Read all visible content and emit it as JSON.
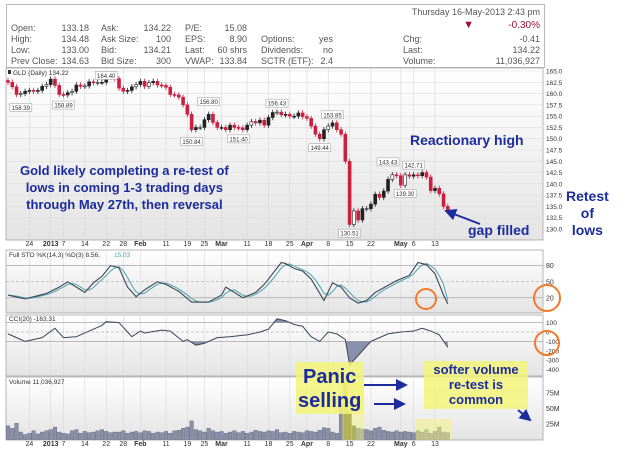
{
  "header": {
    "datetime": "Thursday 16-May-2013 2:43 pm",
    "change_pct": "-0.30%",
    "down_color": "#9b1030",
    "fields": [
      {
        "label": "Open:",
        "value": "133.18"
      },
      {
        "label": "High:",
        "value": "134.48"
      },
      {
        "label": "Low:",
        "value": "133.00"
      },
      {
        "label": "Prev Close:",
        "value": "134.63"
      },
      {
        "label": "Ask:",
        "value": "134.22"
      },
      {
        "label": "Ask Size:",
        "value": "100"
      },
      {
        "label": "Bid:",
        "value": "134.21"
      },
      {
        "label": "Bid Size:",
        "value": "300"
      },
      {
        "label": "P/E:",
        "value": "15.08"
      },
      {
        "label": "EPS:",
        "value": "8.90"
      },
      {
        "label": "Last:",
        "value": "60 shrs"
      },
      {
        "label": "VWAP:",
        "value": "133.84"
      },
      {
        "label": "Options:",
        "value": "yes"
      },
      {
        "label": "Dividends:",
        "value": "no"
      },
      {
        "label": "SCTR (ETF):",
        "value": "2.4"
      },
      {
        "label": "Chg:",
        "value": "-0.41"
      },
      {
        "label": "Last:",
        "value": "134.22"
      },
      {
        "label": "Volume:",
        "value": "11,036,927"
      }
    ]
  },
  "chart_data": {
    "type": "candlestick",
    "price_title": "GLD (Daily) 134.22",
    "first_date": "2012-12-17",
    "last_date": "2013-05-16",
    "closes": [
      162.5,
      161.5,
      159.8,
      160.0,
      160.5,
      160.7,
      160.5,
      160.7,
      161.6,
      162.0,
      163.2,
      161.8,
      159.8,
      159.7,
      160.2,
      160.5,
      161.9,
      161.6,
      161.7,
      162.6,
      162.4,
      162.5,
      162.5,
      163.7,
      163.8,
      163.3,
      161.2,
      160.5,
      160.7,
      161.5,
      162.0,
      162.7,
      161.6,
      162.4,
      162.7,
      161.9,
      161.8,
      161.4,
      159.8,
      159.7,
      159.2,
      157.5,
      155.4,
      152.0,
      152.5,
      152.5,
      154.2,
      155.4,
      153.6,
      152.5,
      152.5,
      152.0,
      153.0,
      152.5,
      152.4,
      152.0,
      153.0,
      153.8,
      153.5,
      154.1,
      153.0,
      154.7,
      155.8,
      155.9,
      155.3,
      155.4,
      155.0,
      155.0,
      155.7,
      154.9,
      154.5,
      152.8,
      151.0,
      150.0,
      152.0,
      152.8,
      153.5,
      152.0,
      151.0,
      145.0,
      131.0,
      134.0,
      132.0,
      134.5,
      134.5,
      135.5,
      137.7,
      137.0,
      138.4,
      141.0,
      142.0,
      141.8,
      139.7,
      142.0,
      141.7,
      142.0,
      141.8,
      142.5,
      141.5,
      138.5,
      139.0,
      137.8,
      135.0,
      134.2
    ],
    "price_labels": [
      {
        "date": "2012-12-20",
        "value": "158.39"
      },
      {
        "date": "2013-01-07",
        "value": "158.89"
      },
      {
        "date": "2013-01-22",
        "value": "164.40"
      },
      {
        "date": "2013-02-20",
        "value": "150.84"
      },
      {
        "date": "2013-02-26",
        "value": "156.80"
      },
      {
        "date": "2013-03-07",
        "value": "151.40"
      },
      {
        "date": "2013-03-20",
        "value": "156.43"
      },
      {
        "date": "2013-04-04",
        "value": "149.44"
      },
      {
        "date": "2013-04-09",
        "value": "153.85"
      },
      {
        "date": "2013-04-15",
        "value": "130.51"
      },
      {
        "date": "2013-04-26",
        "value": "143.43"
      },
      {
        "date": "2013-05-02",
        "value": "139.30"
      },
      {
        "date": "2013-05-06",
        "value": "142.71"
      }
    ],
    "price_ylim": [
      130,
      165
    ],
    "price_yticks": [
      "165.0",
      "162.5",
      "160.0",
      "157.5",
      "155.0",
      "152.5",
      "150.0",
      "147.5",
      "145.0",
      "142.5",
      "140.0",
      "137.5",
      "135.0",
      "132.5",
      "130.0"
    ],
    "xticks": [
      {
        "label": "24",
        "date": "2012-12-24"
      },
      {
        "label": "2013",
        "date": "2013-01-02"
      },
      {
        "label": "7",
        "date": "2013-01-07"
      },
      {
        "label": "14",
        "date": "2013-01-14"
      },
      {
        "label": "22",
        "date": "2013-01-22"
      },
      {
        "label": "28",
        "date": "2013-01-28"
      },
      {
        "label": "Feb",
        "date": "2013-02-01"
      },
      {
        "label": "11",
        "date": "2013-02-11"
      },
      {
        "label": "19",
        "date": "2013-02-19"
      },
      {
        "label": "25",
        "date": "2013-02-25"
      },
      {
        "label": "Mar",
        "date": "2013-03-01"
      },
      {
        "label": "11",
        "date": "2013-03-11"
      },
      {
        "label": "18",
        "date": "2013-03-18"
      },
      {
        "label": "25",
        "date": "2013-03-25"
      },
      {
        "label": "Apr",
        "date": "2013-04-01"
      },
      {
        "label": "8",
        "date": "2013-04-08"
      },
      {
        "label": "15",
        "date": "2013-04-15"
      },
      {
        "label": "22",
        "date": "2013-04-22"
      },
      {
        "label": "May",
        "date": "2013-05-01"
      },
      {
        "label": "6",
        "date": "2013-05-06"
      },
      {
        "label": "13",
        "date": "2013-05-13"
      }
    ],
    "sto_title": "Full STO %K(14,3) %D(3) 8.56,",
    "sto_d_value": "15.03",
    "sto_yticks": [
      "80",
      "50",
      "20"
    ],
    "sto_k": [
      [
        "2012-12-17",
        25
      ],
      [
        "2012-12-21",
        18
      ],
      [
        "2012-12-31",
        28
      ],
      [
        "2013-01-04",
        40
      ],
      [
        "2013-01-08",
        50
      ],
      [
        "2013-01-10",
        40
      ],
      [
        "2013-01-14",
        30
      ],
      [
        "2013-01-16",
        48
      ],
      [
        "2013-01-18",
        60
      ],
      [
        "2013-01-23",
        80
      ],
      [
        "2013-01-25",
        76
      ],
      [
        "2013-01-29",
        40
      ],
      [
        "2013-01-31",
        22
      ],
      [
        "2013-02-04",
        35
      ],
      [
        "2013-02-07",
        50
      ],
      [
        "2013-02-11",
        45
      ],
      [
        "2013-02-14",
        32
      ],
      [
        "2013-02-20",
        12
      ],
      [
        "2013-02-26",
        12
      ],
      [
        "2013-03-01",
        25
      ],
      [
        "2013-03-04",
        40
      ],
      [
        "2013-03-06",
        30
      ],
      [
        "2013-03-08",
        20
      ],
      [
        "2013-03-13",
        30
      ],
      [
        "2013-03-15",
        45
      ],
      [
        "2013-03-18",
        55
      ],
      [
        "2013-03-21",
        86
      ],
      [
        "2013-03-22",
        84
      ],
      [
        "2013-03-26",
        75
      ],
      [
        "2013-03-28",
        70
      ],
      [
        "2013-04-02",
        55
      ],
      [
        "2013-04-05",
        15
      ],
      [
        "2013-04-09",
        48
      ],
      [
        "2013-04-11",
        40
      ],
      [
        "2013-04-15",
        20
      ],
      [
        "2013-04-17",
        10
      ],
      [
        "2013-04-19",
        15
      ],
      [
        "2013-04-23",
        30
      ],
      [
        "2013-04-30",
        52
      ],
      [
        "2013-05-03",
        62
      ],
      [
        "2013-05-07",
        86
      ],
      [
        "2013-05-09",
        82
      ],
      [
        "2013-05-13",
        65
      ],
      [
        "2013-05-15",
        25
      ],
      [
        "2013-05-16",
        8.56
      ]
    ],
    "sto_color_k": "#3a4558",
    "sto_color_d": "#4aa3b0",
    "cci_title": "CCI(20) -163.31",
    "cci_yticks": [
      "100",
      "0",
      "-100",
      "-200",
      "-300",
      "-400"
    ],
    "cci": [
      [
        "2012-12-17",
        -20
      ],
      [
        "2012-12-21",
        -100
      ],
      [
        "2012-12-28",
        -60
      ],
      [
        "2013-01-03",
        40
      ],
      [
        "2013-01-07",
        -60
      ],
      [
        "2013-01-10",
        -50
      ],
      [
        "2013-01-14",
        -10
      ],
      [
        "2013-01-18",
        70
      ],
      [
        "2013-01-22",
        110
      ],
      [
        "2013-01-25",
        100
      ],
      [
        "2013-01-30",
        -50
      ],
      [
        "2013-02-01",
        10
      ],
      [
        "2013-02-04",
        -10
      ],
      [
        "2013-02-08",
        20
      ],
      [
        "2013-02-12",
        10
      ],
      [
        "2013-02-15",
        -100
      ],
      [
        "2013-02-19",
        -80
      ],
      [
        "2013-02-21",
        -140
      ],
      [
        "2013-02-25",
        -120
      ],
      [
        "2013-02-28",
        -60
      ],
      [
        "2013-03-05",
        -50
      ],
      [
        "2013-03-11",
        -30
      ],
      [
        "2013-03-14",
        0
      ],
      [
        "2013-03-18",
        30
      ],
      [
        "2013-03-20",
        140
      ],
      [
        "2013-03-22",
        120
      ],
      [
        "2013-03-26",
        80
      ],
      [
        "2013-03-28",
        60
      ],
      [
        "2013-04-02",
        -50
      ],
      [
        "2013-04-04",
        -100
      ],
      [
        "2013-04-08",
        0
      ],
      [
        "2013-04-10",
        -20
      ],
      [
        "2013-04-12",
        -80
      ],
      [
        "2013-04-15",
        -350
      ],
      [
        "2013-04-17",
        -250
      ],
      [
        "2013-04-22",
        -100
      ],
      [
        "2013-04-26",
        -20
      ],
      [
        "2013-05-01",
        0
      ],
      [
        "2013-05-06",
        10
      ],
      [
        "2013-05-08",
        40
      ],
      [
        "2013-05-10",
        10
      ],
      [
        "2013-05-14",
        -30
      ],
      [
        "2013-05-16",
        -163.31
      ]
    ],
    "volume_title": "Volume 11,036,927",
    "volume_yticks": [
      "75M",
      "50M",
      "25M"
    ],
    "volume_millions": [
      22,
      18,
      26,
      12,
      8,
      10,
      14,
      9,
      12,
      14,
      16,
      20,
      12,
      10,
      9,
      14,
      16,
      10,
      13,
      11,
      12,
      14,
      16,
      13,
      11,
      12,
      12,
      14,
      10,
      12,
      13,
      11,
      14,
      13,
      10,
      12,
      11,
      13,
      10,
      14,
      15,
      18,
      20,
      30,
      16,
      14,
      12,
      18,
      14,
      12,
      13,
      10,
      12,
      14,
      11,
      13,
      10,
      12,
      15,
      13,
      12,
      14,
      13,
      16,
      11,
      12,
      10,
      13,
      12,
      11,
      14,
      13,
      12,
      15,
      19,
      18,
      12,
      10,
      58,
      93,
      47,
      22,
      18,
      17,
      16,
      14,
      18,
      20,
      15,
      13,
      12,
      14,
      12,
      13,
      12,
      11,
      14,
      12,
      16,
      10,
      13,
      20,
      12,
      11
    ],
    "bar_color": "#5a6078",
    "up_color": "#222222",
    "down_color": "#cc1f3f"
  },
  "annotations": {
    "main_text": [
      "Gold likely completing a re-test of",
      "lows in coming 1-3 trading days",
      "through May 27th, then reversal"
    ],
    "reactionary_high": "Reactionary high",
    "retest": [
      "Retest",
      "of",
      "lows"
    ],
    "gap_filled": "gap filled",
    "panic": [
      "Panic",
      "selling"
    ],
    "softer": [
      "softer volume",
      "re-test is",
      "common"
    ],
    "circle_color": "#f07a2a",
    "text_color": "#1c2c9c",
    "highlight_color": "#f3f37a"
  }
}
